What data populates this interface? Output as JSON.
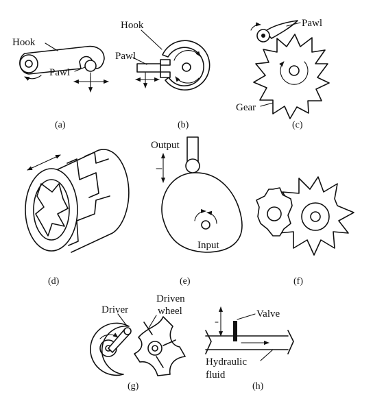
{
  "panels": {
    "a": {
      "caption": "(a)",
      "labels": {
        "hook": "Hook",
        "pawl": "Pawl"
      }
    },
    "b": {
      "caption": "(b)",
      "labels": {
        "hook": "Hook",
        "pawl": "Pawl"
      }
    },
    "c": {
      "caption": "(c)",
      "labels": {
        "pawl": "Pawl",
        "gear": "Gear"
      }
    },
    "d": {
      "caption": "(d)",
      "labels": {}
    },
    "e": {
      "caption": "(e)",
      "labels": {
        "output": "Output",
        "input": "Input"
      }
    },
    "f": {
      "caption": "(f)",
      "labels": {}
    },
    "g": {
      "caption": "(g)",
      "labels": {
        "driver": "Driver",
        "driven_line1": "Driven",
        "driven_line2": "wheel"
      }
    },
    "h": {
      "caption": "(h)",
      "labels": {
        "valve": "Valve",
        "fluid_line1": "Hydraulic",
        "fluid_line2": "fluid"
      }
    }
  }
}
